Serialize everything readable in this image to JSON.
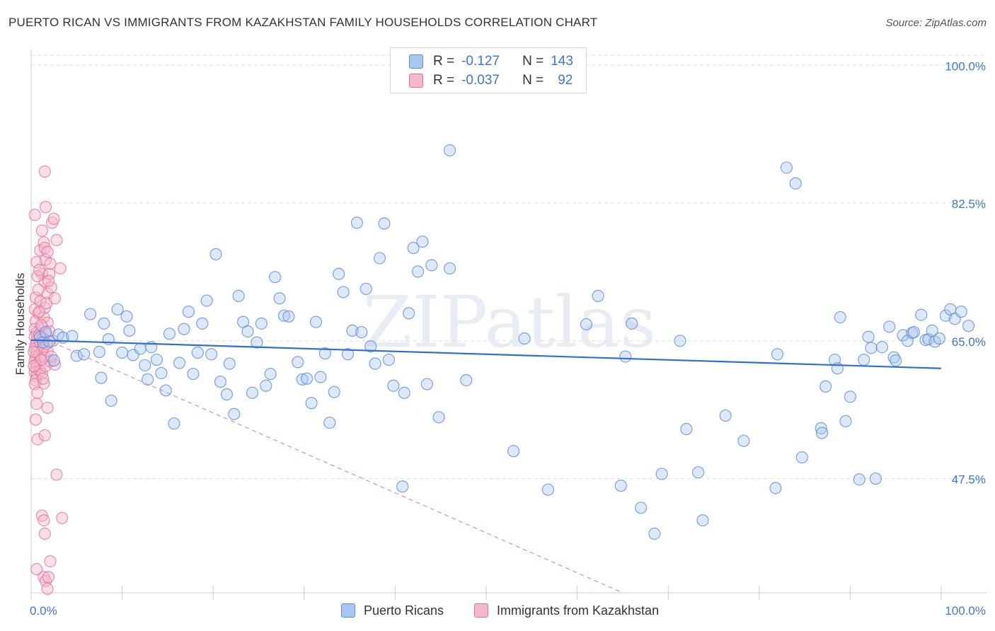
{
  "title": "PUERTO RICAN VS IMMIGRANTS FROM KAZAKHSTAN FAMILY HOUSEHOLDS CORRELATION CHART",
  "source": "Source: ZipAtlas.com",
  "colors": {
    "blue": "#5a8fdc",
    "blue_fill": "#a9c6ef",
    "blue_line": "#2f6fd0",
    "pink": "#e46f96",
    "pink_fill": "#f5b8cc",
    "pink_line": "#e88aa6",
    "axis_label": "#3b76d1",
    "grid": "#dedede"
  },
  "legend": {
    "rows": [
      {
        "r_label": "R =",
        "r_value": "-0.127",
        "n_label": "N =",
        "n_value": "143"
      },
      {
        "r_label": "R =",
        "r_value": "-0.037",
        "n_label": "N =",
        "n_value": "92"
      }
    ]
  },
  "bottom_legend": {
    "series1": "Puerto Ricans",
    "series2": "Immigrants from Kazakhstan"
  },
  "chart_data": {
    "type": "scatter",
    "title": "PUERTO RICAN VS IMMIGRANTS FROM KAZAKHSTAN FAMILY HOUSEHOLDS CORRELATION CHART",
    "xlabel": "",
    "ylabel": "Family Households",
    "xlim": [
      0,
      100
    ],
    "ylim": [
      33,
      102
    ],
    "x_tick_labels": [
      "0.0%",
      "100.0%"
    ],
    "y_ticks": [
      47.5,
      65.0,
      82.5,
      100.0
    ],
    "y_tick_labels": [
      "47.5%",
      "65.0%",
      "82.5%",
      "100.0%"
    ],
    "watermark": "ZIPatlas",
    "series": [
      {
        "name": "Puerto Ricans",
        "trend": {
          "x": [
            0,
            100
          ],
          "y": [
            65.1,
            61.5
          ]
        },
        "points": [
          [
            1.0,
            65.5
          ],
          [
            1.3,
            64.8
          ],
          [
            1.6,
            66.1
          ],
          [
            2.0,
            64.9
          ],
          [
            2.5,
            62.5
          ],
          [
            3.0,
            65.8
          ],
          [
            3.5,
            65.4
          ],
          [
            4.5,
            65.6
          ],
          [
            5.0,
            63.1
          ],
          [
            5.8,
            63.3
          ],
          [
            6.5,
            68.4
          ],
          [
            7.5,
            63.6
          ],
          [
            7.7,
            60.3
          ],
          [
            8.0,
            67.2
          ],
          [
            8.5,
            65.2
          ],
          [
            8.8,
            57.4
          ],
          [
            9.5,
            69.0
          ],
          [
            10.0,
            63.5
          ],
          [
            10.5,
            68.1
          ],
          [
            10.8,
            66.3
          ],
          [
            11.2,
            63.2
          ],
          [
            12.0,
            64.0
          ],
          [
            12.5,
            61.9
          ],
          [
            12.8,
            60.1
          ],
          [
            13.2,
            64.2
          ],
          [
            13.8,
            62.6
          ],
          [
            14.3,
            60.9
          ],
          [
            14.8,
            58.7
          ],
          [
            15.2,
            65.9
          ],
          [
            15.7,
            54.5
          ],
          [
            16.3,
            62.2
          ],
          [
            16.8,
            66.5
          ],
          [
            17.3,
            68.7
          ],
          [
            17.8,
            60.8
          ],
          [
            18.3,
            63.5
          ],
          [
            18.8,
            67.2
          ],
          [
            19.3,
            70.1
          ],
          [
            19.8,
            63.3
          ],
          [
            20.3,
            76.0
          ],
          [
            20.8,
            59.8
          ],
          [
            21.5,
            58.2
          ],
          [
            21.8,
            62.1
          ],
          [
            22.3,
            55.7
          ],
          [
            22.8,
            70.7
          ],
          [
            23.3,
            67.4
          ],
          [
            23.8,
            66.2
          ],
          [
            24.3,
            58.4
          ],
          [
            24.8,
            64.8
          ],
          [
            25.3,
            67.2
          ],
          [
            25.8,
            59.3
          ],
          [
            26.3,
            60.8
          ],
          [
            26.8,
            73.1
          ],
          [
            27.3,
            70.4
          ],
          [
            27.8,
            68.2
          ],
          [
            28.3,
            68.1
          ],
          [
            29.3,
            62.3
          ],
          [
            29.8,
            60.1
          ],
          [
            30.3,
            60.2
          ],
          [
            30.8,
            57.1
          ],
          [
            31.3,
            67.4
          ],
          [
            31.8,
            60.4
          ],
          [
            32.3,
            63.4
          ],
          [
            32.8,
            54.6
          ],
          [
            33.3,
            58.5
          ],
          [
            33.8,
            73.5
          ],
          [
            34.3,
            71.2
          ],
          [
            34.8,
            63.3
          ],
          [
            35.3,
            66.3
          ],
          [
            35.8,
            80.0
          ],
          [
            36.3,
            66.1
          ],
          [
            36.8,
            71.6
          ],
          [
            37.3,
            64.3
          ],
          [
            37.8,
            62.1
          ],
          [
            38.3,
            75.5
          ],
          [
            38.8,
            79.9
          ],
          [
            39.3,
            62.6
          ],
          [
            39.8,
            59.3
          ],
          [
            40.8,
            46.5
          ],
          [
            41.0,
            58.4
          ],
          [
            41.5,
            68.5
          ],
          [
            42.0,
            76.8
          ],
          [
            42.5,
            73.8
          ],
          [
            43.0,
            77.6
          ],
          [
            43.5,
            59.5
          ],
          [
            44.0,
            74.6
          ],
          [
            44.8,
            55.3
          ],
          [
            46.0,
            89.2
          ],
          [
            46.0,
            74.2
          ],
          [
            47.8,
            60.0
          ],
          [
            53.0,
            51.0
          ],
          [
            54.2,
            65.3
          ],
          [
            56.8,
            46.1
          ],
          [
            61.0,
            67.1
          ],
          [
            62.3,
            70.7
          ],
          [
            64.8,
            46.6
          ],
          [
            65.3,
            63.0
          ],
          [
            66.0,
            67.2
          ],
          [
            67.0,
            43.8
          ],
          [
            68.5,
            40.5
          ],
          [
            69.3,
            48.1
          ],
          [
            71.3,
            65.0
          ],
          [
            72.0,
            53.8
          ],
          [
            73.3,
            48.3
          ],
          [
            73.8,
            42.2
          ],
          [
            76.3,
            55.5
          ],
          [
            78.3,
            52.3
          ],
          [
            81.8,
            46.3
          ],
          [
            82.0,
            63.3
          ],
          [
            83.0,
            87.0
          ],
          [
            84.0,
            85.0
          ],
          [
            84.7,
            50.2
          ],
          [
            86.8,
            53.9
          ],
          [
            86.9,
            53.3
          ],
          [
            87.3,
            59.2
          ],
          [
            88.3,
            62.6
          ],
          [
            88.6,
            61.5
          ],
          [
            88.9,
            68.0
          ],
          [
            89.5,
            54.8
          ],
          [
            90.0,
            57.9
          ],
          [
            91.0,
            47.4
          ],
          [
            91.5,
            62.6
          ],
          [
            92.0,
            65.5
          ],
          [
            92.3,
            64.1
          ],
          [
            92.8,
            47.5
          ],
          [
            93.5,
            64.2
          ],
          [
            94.3,
            66.8
          ],
          [
            94.8,
            62.9
          ],
          [
            95.0,
            62.5
          ],
          [
            95.8,
            65.7
          ],
          [
            96.3,
            65.0
          ],
          [
            96.8,
            66.0
          ],
          [
            97.0,
            66.1
          ],
          [
            97.8,
            68.3
          ],
          [
            98.3,
            65.1
          ],
          [
            98.6,
            65.2
          ],
          [
            99.0,
            66.3
          ],
          [
            99.3,
            64.9
          ],
          [
            99.8,
            65.3
          ],
          [
            100.5,
            68.2
          ],
          [
            101.0,
            69.0
          ],
          [
            101.5,
            67.8
          ],
          [
            102.2,
            68.7
          ],
          [
            103.0,
            66.9
          ]
        ]
      },
      {
        "name": "Immigrants from Kazakhstan",
        "trend": {
          "x": [
            0,
            65
          ],
          "y": [
            66.0,
            33.0
          ]
        },
        "points": [
          [
            0.4,
            81.0
          ],
          [
            0.6,
            75.0
          ],
          [
            0.5,
            70.5
          ],
          [
            0.4,
            69.0
          ],
          [
            0.5,
            67.5
          ],
          [
            0.4,
            66.5
          ],
          [
            0.6,
            66.0
          ],
          [
            0.4,
            65.5
          ],
          [
            0.6,
            65.0
          ],
          [
            0.5,
            64.5
          ],
          [
            0.4,
            64.0
          ],
          [
            0.6,
            63.5
          ],
          [
            0.5,
            63.0
          ],
          [
            0.4,
            62.5
          ],
          [
            0.6,
            62.0
          ],
          [
            0.5,
            61.5
          ],
          [
            0.4,
            61.0
          ],
          [
            0.6,
            60.5
          ],
          [
            0.5,
            60.0
          ],
          [
            0.4,
            59.5
          ],
          [
            0.6,
            57.0
          ],
          [
            0.5,
            55.0
          ],
          [
            0.7,
            52.5
          ],
          [
            0.6,
            36.0
          ],
          [
            0.8,
            68.5
          ],
          [
            0.9,
            65.8
          ],
          [
            0.9,
            63.2
          ],
          [
            1.0,
            76.5
          ],
          [
            1.0,
            70.0
          ],
          [
            1.0,
            64.8
          ],
          [
            1.0,
            61.2
          ],
          [
            1.2,
            79.0
          ],
          [
            1.2,
            73.5
          ],
          [
            1.2,
            66.8
          ],
          [
            1.2,
            63.8
          ],
          [
            1.2,
            60.8
          ],
          [
            1.2,
            42.8
          ],
          [
            1.4,
            77.5
          ],
          [
            1.4,
            68.0
          ],
          [
            1.4,
            64.2
          ],
          [
            1.4,
            59.6
          ],
          [
            1.4,
            42.2
          ],
          [
            1.4,
            35.0
          ],
          [
            1.5,
            86.5
          ],
          [
            1.5,
            76.8
          ],
          [
            1.5,
            72.5
          ],
          [
            1.5,
            69.2
          ],
          [
            1.5,
            62.9
          ],
          [
            1.5,
            53.0
          ],
          [
            1.5,
            40.5
          ],
          [
            1.6,
            82.0
          ],
          [
            1.6,
            75.3
          ],
          [
            1.6,
            65.9
          ],
          [
            1.6,
            61.8
          ],
          [
            1.6,
            34.5
          ],
          [
            1.8,
            76.3
          ],
          [
            1.8,
            71.0
          ],
          [
            1.8,
            67.3
          ],
          [
            1.8,
            63.7
          ],
          [
            1.8,
            33.5
          ],
          [
            1.8,
            56.5
          ],
          [
            1.9,
            35.0
          ],
          [
            2.0,
            73.5
          ],
          [
            2.0,
            66.2
          ],
          [
            2.1,
            74.8
          ],
          [
            2.1,
            62.4
          ],
          [
            2.1,
            37.0
          ],
          [
            2.3,
            80.0
          ],
          [
            2.4,
            65.0
          ],
          [
            2.5,
            80.5
          ],
          [
            2.6,
            62.0
          ],
          [
            2.8,
            77.8
          ],
          [
            2.8,
            48.0
          ],
          [
            3.2,
            74.2
          ],
          [
            3.4,
            42.5
          ],
          [
            0.7,
            73.2
          ],
          [
            0.8,
            71.5
          ],
          [
            0.9,
            68.7
          ],
          [
            1.1,
            67.0
          ],
          [
            1.1,
            62.6
          ],
          [
            1.3,
            65.3
          ],
          [
            1.3,
            60.2
          ],
          [
            1.7,
            69.8
          ],
          [
            1.7,
            64.6
          ],
          [
            2.2,
            71.8
          ],
          [
            2.2,
            63.0
          ],
          [
            2.6,
            70.4
          ],
          [
            0.3,
            63.6
          ],
          [
            0.3,
            61.8
          ],
          [
            0.7,
            58.4
          ],
          [
            0.9,
            74.0
          ],
          [
            1.9,
            72.6
          ]
        ]
      }
    ]
  }
}
